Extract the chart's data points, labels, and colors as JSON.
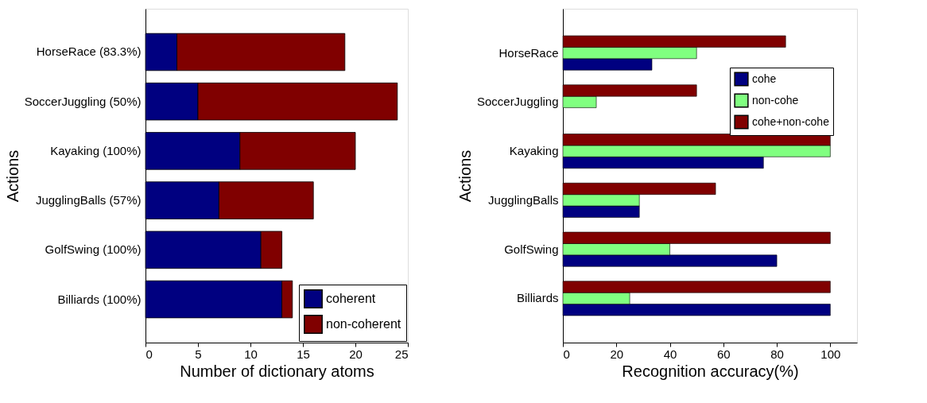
{
  "chart_data": [
    {
      "type": "bar",
      "orientation": "horizontal",
      "stacked": true,
      "xlabel": "Number of dictionary atoms",
      "ylabel": "Actions",
      "categories": [
        "HorseRace (83.3%)",
        "SoccerJuggling (50%)",
        "Kayaking (100%)",
        "JugglingBalls (57%)",
        "GolfSwing (100%)",
        "Billiards (100%)"
      ],
      "series": [
        {
          "name": "coherent",
          "color": "#000080",
          "values": [
            3,
            5,
            9,
            7,
            11,
            13
          ]
        },
        {
          "name": "non-coherent",
          "color": "#800000",
          "values": [
            16,
            19,
            11,
            9,
            2,
            1
          ]
        }
      ],
      "xlim": [
        0,
        25
      ],
      "xticks": [
        0,
        5,
        10,
        15,
        20,
        25
      ],
      "grid": false,
      "legend": "bottom right"
    },
    {
      "type": "bar",
      "orientation": "horizontal",
      "xlabel": "Recognition accuracy(%)",
      "ylabel": "Actions",
      "categories": [
        "HorseRace",
        "SoccerJuggling",
        "Kayaking",
        "JugglingBalls",
        "GolfSwing",
        "Billiards"
      ],
      "series": [
        {
          "name": "cohe",
          "color": "#000080",
          "values": [
            33.3,
            null,
            75,
            28.6,
            80,
            100
          ]
        },
        {
          "name": "non-cohe",
          "color": "#80ff80",
          "values": [
            50,
            12.5,
            100,
            28.6,
            40,
            25
          ]
        },
        {
          "name": "cohe+non-cohe",
          "color": "#800000",
          "values": [
            83.3,
            50,
            100,
            57.1,
            100,
            100
          ]
        }
      ],
      "xlim": [
        0,
        110
      ],
      "xticks": [
        0,
        20,
        40,
        60,
        80,
        100
      ],
      "grid": false,
      "legend": "top right"
    }
  ]
}
